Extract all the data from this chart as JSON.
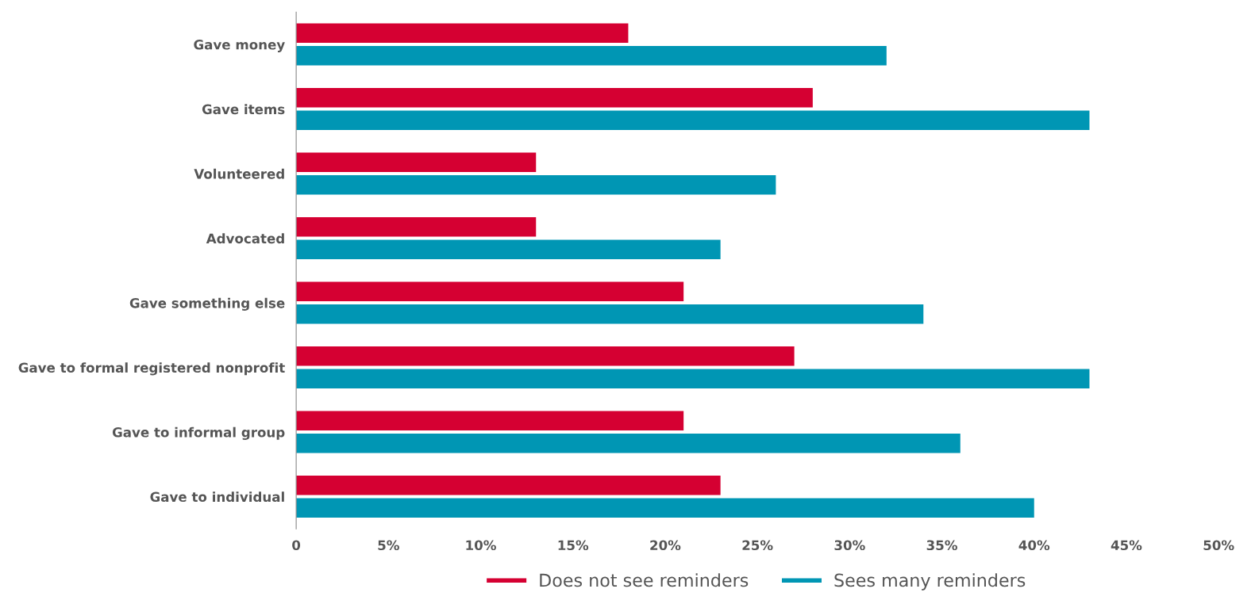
{
  "chart_data": {
    "type": "bar",
    "orientation": "horizontal",
    "categories": [
      "Gave money",
      "Gave items",
      "Volunteered",
      "Advocated",
      "Gave something else",
      "Gave to formal registered nonprofit",
      "Gave to informal group",
      "Gave to individual"
    ],
    "series": [
      {
        "name": "Does not see reminders",
        "color": "#d50032",
        "values": [
          18,
          28,
          13,
          13,
          21,
          27,
          21,
          23
        ]
      },
      {
        "name": "Sees many reminders",
        "color": "#0096b4",
        "values": [
          32,
          43,
          26,
          23,
          34,
          43,
          36,
          40
        ]
      }
    ],
    "xlim": [
      0,
      50
    ],
    "xticks": [
      {
        "value": 0,
        "label": "0"
      },
      {
        "value": 5,
        "label": "5%"
      },
      {
        "value": 10,
        "label": "10%"
      },
      {
        "value": 15,
        "label": "15%"
      },
      {
        "value": 20,
        "label": "20%"
      },
      {
        "value": 25,
        "label": "25%"
      },
      {
        "value": 30,
        "label": "30%"
      },
      {
        "value": 35,
        "label": "35%"
      },
      {
        "value": 40,
        "label": "40%"
      },
      {
        "value": 45,
        "label": "45%"
      },
      {
        "value": 50,
        "label": "50%"
      }
    ],
    "grid": false,
    "legend": "bottom"
  }
}
